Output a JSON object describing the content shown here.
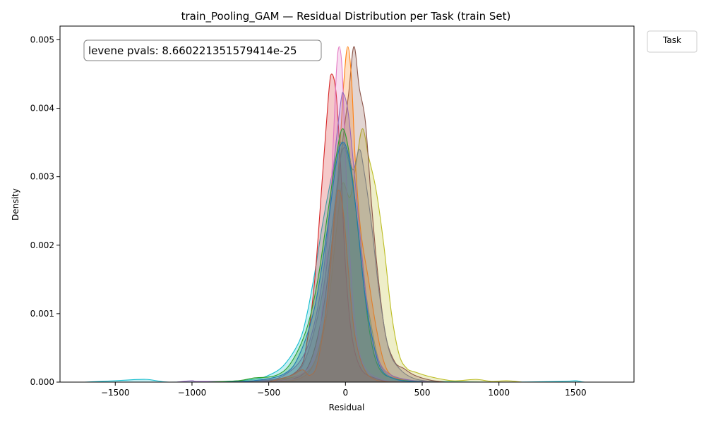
{
  "chart_data": {
    "type": "area",
    "title": "train_Pooling_GAM — Residual Distribution per Task (train Set)",
    "xlabel": "Residual",
    "ylabel": "Density",
    "xlim": [
      -1860,
      1880
    ],
    "ylim": [
      0,
      0.0052
    ],
    "xticks": [
      -1500,
      -1000,
      -500,
      0,
      500,
      1000,
      1500
    ],
    "yticks": [
      0.0,
      0.001,
      0.002,
      0.003,
      0.004,
      0.005
    ],
    "xtick_labels": [
      "−1500",
      "−1000",
      "−500",
      "0",
      "500",
      "1000",
      "1500"
    ],
    "ytick_labels": [
      "0.000",
      "0.001",
      "0.002",
      "0.003",
      "0.004",
      "0.005"
    ],
    "grid": false,
    "legend": {
      "title": "Task",
      "placement": "top-right-outside",
      "entries": []
    },
    "annotation": "levene pvals: 8.660221351579414e-25",
    "series": [
      {
        "color": "#17becf",
        "points": [
          [
            -1700,
            0
          ],
          [
            -1500,
            2e-05
          ],
          [
            -1300,
            4e-05
          ],
          [
            -1150,
            0
          ],
          [
            -800,
            1e-05
          ],
          [
            -600,
            4e-05
          ],
          [
            -500,
            0.0001
          ],
          [
            -400,
            0.00025
          ],
          [
            -300,
            0.0006
          ],
          [
            -250,
            0.001
          ],
          [
            -200,
            0.0016
          ],
          [
            -150,
            0.0023
          ],
          [
            -100,
            0.0029
          ],
          [
            -60,
            0.0033
          ],
          [
            -30,
            0.0035
          ],
          [
            0,
            0.0034
          ],
          [
            40,
            0.003
          ],
          [
            80,
            0.0023
          ],
          [
            120,
            0.0015
          ],
          [
            170,
            0.0008
          ],
          [
            220,
            0.0003
          ],
          [
            280,
            0.0001
          ],
          [
            400,
            3e-05
          ],
          [
            600,
            1e-05
          ],
          [
            1000,
            0
          ],
          [
            1400,
            1e-05
          ],
          [
            1500,
            2e-05
          ],
          [
            1560,
            0
          ],
          [
            1720,
            0
          ]
        ]
      },
      {
        "color": "#bcbd22",
        "points": [
          [
            -900,
            0
          ],
          [
            -500,
            3e-05
          ],
          [
            -300,
            0.0001
          ],
          [
            -200,
            0.0003
          ],
          [
            -120,
            0.001
          ],
          [
            -60,
            0.0022
          ],
          [
            -20,
            0.0029
          ],
          [
            30,
            0.0027
          ],
          [
            70,
            0.0032
          ],
          [
            110,
            0.0037
          ],
          [
            150,
            0.0033
          ],
          [
            200,
            0.0028
          ],
          [
            250,
            0.002
          ],
          [
            300,
            0.001
          ],
          [
            350,
            0.0004
          ],
          [
            400,
            0.0002
          ],
          [
            450,
            0.00015
          ],
          [
            550,
            8e-05
          ],
          [
            700,
            2e-05
          ],
          [
            850,
            4e-05
          ],
          [
            950,
            1e-05
          ],
          [
            1050,
            2e-05
          ],
          [
            1150,
            0
          ]
        ]
      },
      {
        "color": "#8c564b",
        "points": [
          [
            -700,
            0
          ],
          [
            -400,
            3e-05
          ],
          [
            -250,
            0.0002
          ],
          [
            -150,
            0.001
          ],
          [
            -80,
            0.0022
          ],
          [
            -30,
            0.0033
          ],
          [
            20,
            0.0042
          ],
          [
            55,
            0.0049
          ],
          [
            90,
            0.0043
          ],
          [
            130,
            0.0038
          ],
          [
            170,
            0.0026
          ],
          [
            210,
            0.0016
          ],
          [
            260,
            0.0007
          ],
          [
            320,
            0.0003
          ],
          [
            380,
            0.0002
          ],
          [
            450,
            0.0001
          ],
          [
            550,
            3e-05
          ],
          [
            650,
            0
          ]
        ]
      },
      {
        "color": "#ff7f0e",
        "points": [
          [
            -500,
            0
          ],
          [
            -300,
            5e-05
          ],
          [
            -200,
            0.0003
          ],
          [
            -130,
            0.001
          ],
          [
            -80,
            0.0021
          ],
          [
            -40,
            0.0033
          ],
          [
            -10,
            0.0044
          ],
          [
            15,
            0.0049
          ],
          [
            40,
            0.0044
          ],
          [
            65,
            0.0032
          ],
          [
            100,
            0.0022
          ],
          [
            150,
            0.0015
          ],
          [
            200,
            0.0008
          ],
          [
            250,
            0.0003
          ],
          [
            300,
            0.0001
          ],
          [
            400,
            2e-05
          ],
          [
            500,
            0
          ]
        ]
      },
      {
        "color": "#d62728",
        "points": [
          [
            -700,
            0
          ],
          [
            -450,
            3e-05
          ],
          [
            -300,
            0.0002
          ],
          [
            -250,
            0.0006
          ],
          [
            -200,
            0.0015
          ],
          [
            -150,
            0.003
          ],
          [
            -110,
            0.0042
          ],
          [
            -90,
            0.0045
          ],
          [
            -60,
            0.0042
          ],
          [
            -30,
            0.0031
          ],
          [
            0,
            0.0017
          ],
          [
            40,
            0.0007
          ],
          [
            100,
            0.0002
          ],
          [
            200,
            5e-05
          ],
          [
            300,
            0
          ]
        ]
      },
      {
        "color": "#e377c2",
        "points": [
          [
            -600,
            0
          ],
          [
            -350,
            5e-05
          ],
          [
            -200,
            0.0004
          ],
          [
            -130,
            0.0016
          ],
          [
            -90,
            0.003
          ],
          [
            -60,
            0.0045
          ],
          [
            -40,
            0.0049
          ],
          [
            -20,
            0.0045
          ],
          [
            0,
            0.0033
          ],
          [
            30,
            0.0018
          ],
          [
            70,
            0.0007
          ],
          [
            130,
            0.0002
          ],
          [
            250,
            3e-05
          ],
          [
            400,
            0
          ]
        ]
      },
      {
        "color": "#9467bd",
        "points": [
          [
            -1100,
            0
          ],
          [
            -1000,
            2e-05
          ],
          [
            -950,
            1e-05
          ],
          [
            -600,
            2e-05
          ],
          [
            -400,
            0.0001
          ],
          [
            -250,
            0.0005
          ],
          [
            -150,
            0.0015
          ],
          [
            -80,
            0.0031
          ],
          [
            -30,
            0.0041
          ],
          [
            -10,
            0.0042
          ],
          [
            20,
            0.0039
          ],
          [
            60,
            0.003
          ],
          [
            110,
            0.0018
          ],
          [
            160,
            0.0008
          ],
          [
            220,
            0.0003
          ],
          [
            300,
            0.0001
          ],
          [
            450,
            2e-05
          ],
          [
            600,
            0
          ]
        ]
      },
      {
        "color": "#2ca02c",
        "points": [
          [
            -900,
            0
          ],
          [
            -700,
            2e-05
          ],
          [
            -600,
            6e-05
          ],
          [
            -450,
            0.0001
          ],
          [
            -350,
            0.0003
          ],
          [
            -250,
            0.0008
          ],
          [
            -180,
            0.0015
          ],
          [
            -120,
            0.0024
          ],
          [
            -60,
            0.0033
          ],
          [
            -20,
            0.0037
          ],
          [
            20,
            0.0034
          ],
          [
            60,
            0.0027
          ],
          [
            110,
            0.0016
          ],
          [
            160,
            0.0007
          ],
          [
            220,
            0.0002
          ],
          [
            320,
            5e-05
          ],
          [
            500,
            0
          ]
        ]
      },
      {
        "color": "#7f7f7f",
        "points": [
          [
            -600,
            0
          ],
          [
            -350,
            0.0001
          ],
          [
            -250,
            0.0004
          ],
          [
            -150,
            0.0013
          ],
          [
            -80,
            0.0024
          ],
          [
            -30,
            0.0033
          ],
          [
            10,
            0.0034
          ],
          [
            50,
            0.0031
          ],
          [
            90,
            0.0034
          ],
          [
            120,
            0.0031
          ],
          [
            170,
            0.0023
          ],
          [
            220,
            0.0013
          ],
          [
            280,
            0.0005
          ],
          [
            350,
            0.0002
          ],
          [
            450,
            5e-05
          ],
          [
            600,
            0
          ]
        ]
      },
      {
        "color": "#1f77b4",
        "points": [
          [
            -800,
            0
          ],
          [
            -600,
            2e-05
          ],
          [
            -400,
            0.00012
          ],
          [
            -300,
            0.0004
          ],
          [
            -200,
            0.0011
          ],
          [
            -120,
            0.0022
          ],
          [
            -60,
            0.0032
          ],
          [
            -20,
            0.0035
          ],
          [
            20,
            0.0033
          ],
          [
            70,
            0.0025
          ],
          [
            120,
            0.0014
          ],
          [
            170,
            0.0007
          ],
          [
            230,
            0.0002
          ],
          [
            330,
            4e-05
          ],
          [
            500,
            0
          ]
        ]
      },
      {
        "color": "#a07050",
        "points": [
          [
            -500,
            0
          ],
          [
            -350,
            0.0001
          ],
          [
            -280,
            0.00018
          ],
          [
            -230,
            0.0001
          ],
          [
            -180,
            0.0003
          ],
          [
            -120,
            0.0012
          ],
          [
            -70,
            0.0025
          ],
          [
            -40,
            0.0028
          ],
          [
            -10,
            0.0024
          ],
          [
            20,
            0.0016
          ],
          [
            60,
            0.0007
          ],
          [
            120,
            0.0002
          ],
          [
            200,
            3e-05
          ],
          [
            350,
            0
          ]
        ]
      }
    ]
  }
}
